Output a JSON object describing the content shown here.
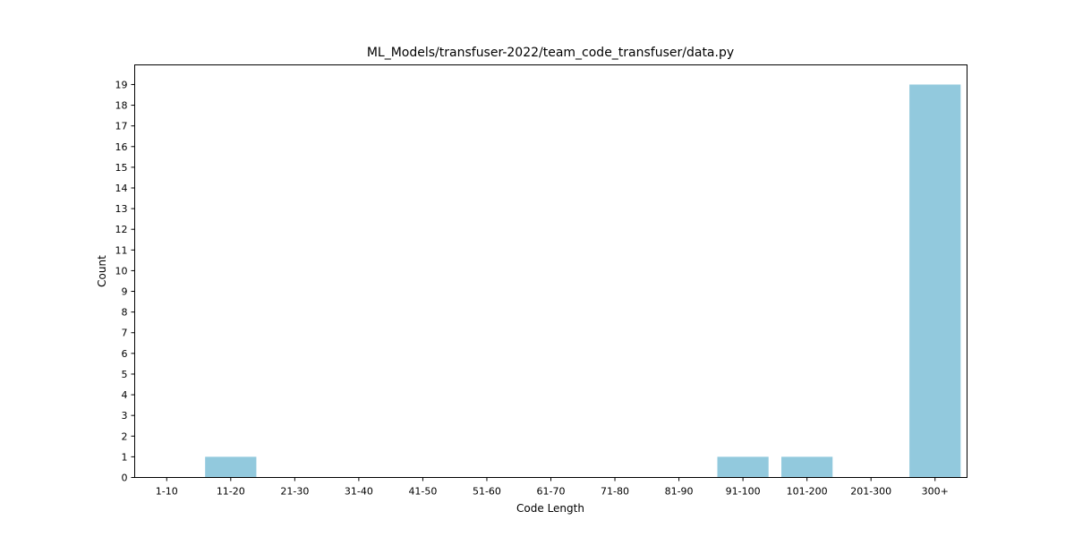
{
  "chart_data": {
    "type": "bar",
    "title": "ML_Models/transfuser-2022/team_code_transfuser/data.py",
    "xlabel": "Code Length",
    "ylabel": "Count",
    "categories": [
      "1-10",
      "11-20",
      "21-30",
      "31-40",
      "41-50",
      "51-60",
      "61-70",
      "71-80",
      "81-90",
      "91-100",
      "101-200",
      "201-300",
      "300+"
    ],
    "values": [
      0,
      1,
      0,
      0,
      0,
      0,
      0,
      0,
      0,
      1,
      1,
      0,
      19
    ],
    "yticks": [
      0,
      1,
      2,
      3,
      4,
      5,
      6,
      7,
      8,
      9,
      10,
      11,
      12,
      13,
      14,
      15,
      16,
      17,
      18,
      19
    ],
    "ylim": [
      0,
      19.95
    ],
    "bar_color": "#92c9dd",
    "grid": false,
    "legend": "none"
  }
}
